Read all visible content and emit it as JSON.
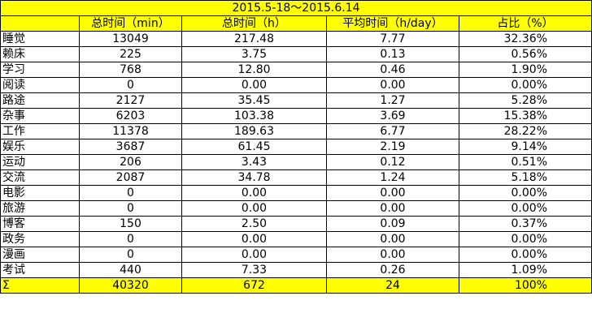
{
  "title": "2015.5-18～2015.6.14",
  "headers": [
    "",
    "总时间（min）",
    "总时间（h）",
    "平均时间（h/day）",
    "占比（%）"
  ],
  "rows": [
    [
      "睡觉",
      "13049",
      "217.48",
      "7.77",
      "32.36%"
    ],
    [
      "赖床",
      "225",
      "3.75",
      "0.13",
      "0.56%"
    ],
    [
      "学习",
      "768",
      "12.80",
      "0.46",
      "1.90%"
    ],
    [
      "阅读",
      "0",
      "0.00",
      "0.00",
      "0.00%"
    ],
    [
      "路途",
      "2127",
      "35.45",
      "1.27",
      "5.28%"
    ],
    [
      "杂事",
      "6203",
      "103.38",
      "3.69",
      "15.38%"
    ],
    [
      "工作",
      "11378",
      "189.63",
      "6.77",
      "28.22%"
    ],
    [
      "娱乐",
      "3687",
      "61.45",
      "2.19",
      "9.14%"
    ],
    [
      "运动",
      "206",
      "3.43",
      "0.12",
      "0.51%"
    ],
    [
      "交流",
      "2087",
      "34.78",
      "1.24",
      "5.18%"
    ],
    [
      "电影",
      "0",
      "0.00",
      "0.00",
      "0.00%"
    ],
    [
      "旅游",
      "0",
      "0.00",
      "0.00",
      "0.00%"
    ],
    [
      "博客",
      "150",
      "2.50",
      "0.09",
      "0.37%"
    ],
    [
      "政务",
      "0",
      "0.00",
      "0.00",
      "0.00%"
    ],
    [
      "漫画",
      "0",
      "0.00",
      "0.00",
      "0.00%"
    ],
    [
      "考试",
      "440",
      "7.33",
      "0.26",
      "1.09%"
    ]
  ],
  "totals": [
    "Σ",
    "40320",
    "672",
    "24",
    "100%"
  ],
  "colors": {
    "header_fill": "#ffff00",
    "grid_line": "#000000"
  }
}
